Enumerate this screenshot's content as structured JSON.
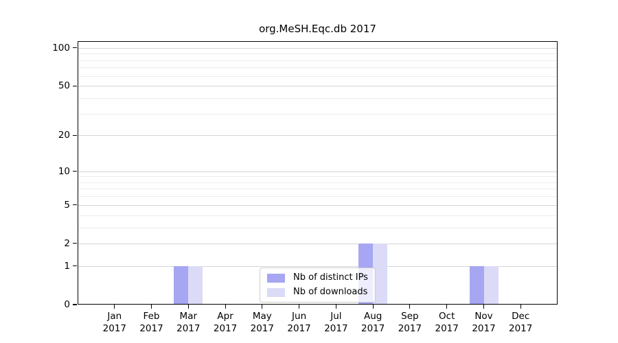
{
  "chart_data": {
    "type": "bar",
    "title": "org.MeSH.Eqc.db 2017",
    "categories": [
      "Jan",
      "Feb",
      "Mar",
      "Apr",
      "May",
      "Jun",
      "Jul",
      "Aug",
      "Sep",
      "Oct",
      "Nov",
      "Dec"
    ],
    "year_label": "2017",
    "series": [
      {
        "name": "Nb of distinct IPs",
        "color": "#a6a6f2",
        "values": [
          0,
          0,
          1,
          0,
          0,
          0,
          0,
          2,
          0,
          0,
          1,
          0
        ]
      },
      {
        "name": "Nb of downloads",
        "color": "#dbdbf7",
        "values": [
          0,
          0,
          1,
          0,
          0,
          0,
          0,
          2,
          0,
          0,
          1,
          0
        ]
      }
    ],
    "yscale": "log1p",
    "ylim": [
      0,
      113
    ],
    "yticks": [
      0,
      1,
      2,
      5,
      10,
      20,
      50,
      100
    ],
    "minor_gridlines": [
      3,
      4,
      6,
      7,
      8,
      9,
      30,
      40,
      60,
      70,
      80,
      90
    ],
    "grid": true,
    "legend_position": "inside-bottom-center",
    "colors": {
      "major_grid": "#d4d4d4",
      "minor_grid": "#ececec",
      "axis": "#000000",
      "background": "#ffffff"
    }
  }
}
